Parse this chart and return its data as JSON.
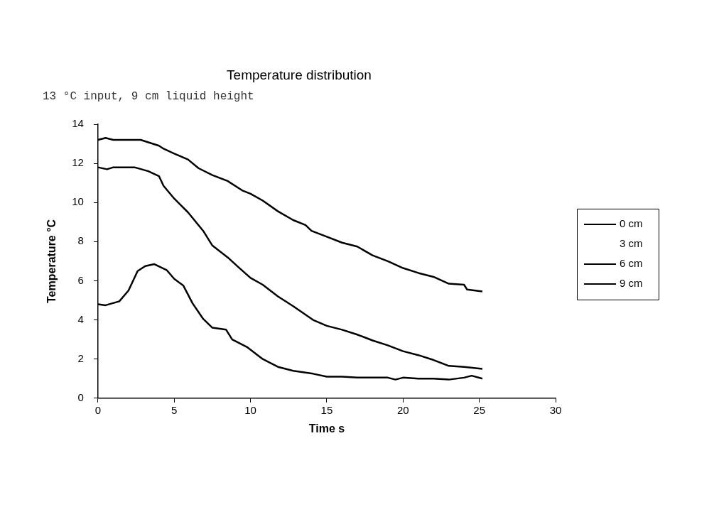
{
  "chart_data": {
    "type": "line",
    "title": "Temperature distribution",
    "subtitle": "13 °C input, 9 cm liquid height",
    "xlabel": "Time s",
    "ylabel": "Temperature °C",
    "xlim": [
      0,
      30
    ],
    "xticks": [
      0,
      5,
      10,
      15,
      20,
      25,
      30
    ],
    "ylim": [
      0,
      14
    ],
    "yticks": [
      0,
      2,
      4,
      6,
      8,
      10,
      12,
      14
    ],
    "grid": false,
    "legend": "right",
    "marker": "none",
    "line_style": "solid",
    "series": [
      {
        "name": "0 cm",
        "color": "#000000",
        "x": [
          0,
          0.5,
          1,
          2.8,
          4,
          4.3,
          5,
          5.9,
          6.6,
          7.5,
          8.5,
          9.5,
          10,
          10.8,
          11.8,
          12.8,
          13.6,
          14,
          15,
          16,
          17,
          18,
          19,
          20,
          21,
          22,
          23,
          24,
          24.2,
          25.2
        ],
        "values": [
          13.2,
          13.3,
          13.2,
          13.2,
          12.9,
          12.75,
          12.5,
          12.2,
          11.75,
          11.4,
          11.1,
          10.6,
          10.45,
          10.1,
          9.55,
          9.1,
          8.85,
          8.55,
          8.25,
          7.95,
          7.75,
          7.3,
          7.0,
          6.65,
          6.4,
          6.2,
          5.85,
          5.8,
          5.55,
          5.45
        ]
      },
      {
        "name": "3 cm"
      },
      {
        "name": "6 cm",
        "color": "#000000",
        "x": [
          0,
          0.6,
          1,
          2.4,
          3.3,
          4,
          4.3,
          5,
          5.9,
          6.9,
          7.5,
          8.5,
          9.2,
          10,
          10.8,
          11.8,
          12.8,
          14.1,
          15,
          16,
          17,
          18,
          19,
          20,
          21,
          22,
          23,
          24,
          25.2
        ],
        "values": [
          11.8,
          11.7,
          11.8,
          11.8,
          11.6,
          11.35,
          10.85,
          10.2,
          9.5,
          8.55,
          7.8,
          7.2,
          6.7,
          6.15,
          5.8,
          5.2,
          4.7,
          4.0,
          3.7,
          3.5,
          3.25,
          2.95,
          2.7,
          2.4,
          2.2,
          1.95,
          1.65,
          1.6,
          1.5
        ]
      },
      {
        "name": "9 cm",
        "color": "#000000",
        "x": [
          0,
          0.5,
          1.4,
          2,
          2.6,
          3.1,
          3.7,
          4.5,
          5,
          5.6,
          6.2,
          6.9,
          7.5,
          8.4,
          8.8,
          9.8,
          10.8,
          11.8,
          12.8,
          14.1,
          15,
          16,
          17,
          19,
          19.5,
          20,
          21,
          22,
          23,
          24,
          24.5,
          25.2
        ],
        "values": [
          4.8,
          4.75,
          4.95,
          5.5,
          6.5,
          6.75,
          6.85,
          6.55,
          6.1,
          5.75,
          4.85,
          4.05,
          3.6,
          3.5,
          3.0,
          2.6,
          2.0,
          1.6,
          1.4,
          1.25,
          1.1,
          1.1,
          1.05,
          1.05,
          0.95,
          1.05,
          1.0,
          1.0,
          0.95,
          1.05,
          1.15,
          1.0
        ]
      }
    ]
  }
}
